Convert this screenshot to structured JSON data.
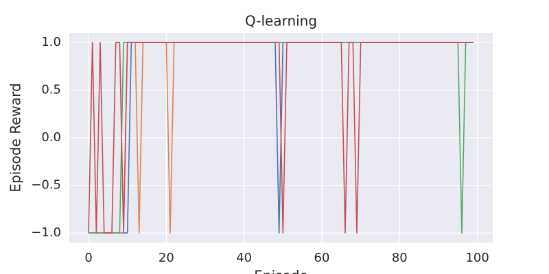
{
  "chart_data": {
    "type": "line",
    "title": "Q-learning",
    "x_label": "Episode",
    "y_label": "Episode Reward",
    "x": [
      0,
      1,
      2,
      3,
      4,
      5,
      6,
      7,
      8,
      9,
      10,
      11,
      12,
      13,
      14,
      15,
      16,
      17,
      18,
      19,
      20,
      21,
      22,
      23,
      24,
      25,
      26,
      27,
      28,
      29,
      30,
      31,
      32,
      33,
      34,
      35,
      36,
      37,
      38,
      39,
      40,
      41,
      42,
      43,
      44,
      45,
      46,
      47,
      48,
      49,
      50,
      51,
      52,
      53,
      54,
      55,
      56,
      57,
      58,
      59,
      60,
      61,
      62,
      63,
      64,
      65,
      66,
      67,
      68,
      69,
      70,
      71,
      72,
      73,
      74,
      75,
      76,
      77,
      78,
      79,
      80,
      81,
      82,
      83,
      84,
      85,
      86,
      87,
      88,
      89,
      90,
      91,
      92,
      93,
      94,
      95,
      96,
      97,
      98,
      99
    ],
    "series": [
      {
        "color": "#4c72b0",
        "values": [
          -1,
          -1,
          -1,
          -1,
          -1,
          -1,
          -1,
          -1,
          -1,
          -1,
          -1,
          1,
          1,
          1,
          1,
          1,
          1,
          1,
          1,
          1,
          1,
          1,
          1,
          1,
          1,
          1,
          1,
          1,
          1,
          1,
          1,
          1,
          1,
          1,
          1,
          1,
          1,
          1,
          1,
          1,
          1,
          1,
          1,
          1,
          1,
          1,
          1,
          1,
          1,
          -1,
          1,
          1,
          1,
          1,
          1,
          1,
          1,
          1,
          1,
          1,
          1,
          1,
          1,
          1,
          1,
          1,
          1,
          1,
          1,
          1,
          1,
          1,
          1,
          1,
          1,
          1,
          1,
          1,
          1,
          1,
          1,
          1,
          1,
          1,
          1,
          1,
          1,
          1,
          1,
          1,
          1,
          1,
          1,
          1,
          1,
          1,
          1,
          1,
          1,
          1
        ]
      },
      {
        "color": "#dd8452",
        "values": [
          -1,
          -1,
          -1,
          -1,
          -1,
          -1,
          -1,
          -1,
          -1,
          -1,
          1,
          1,
          1,
          -1,
          1,
          1,
          1,
          1,
          1,
          1,
          1,
          -1,
          1,
          1,
          1,
          1,
          1,
          1,
          1,
          1,
          1,
          1,
          1,
          1,
          1,
          1,
          1,
          1,
          1,
          1,
          1,
          1,
          1,
          1,
          1,
          1,
          1,
          1,
          1,
          1,
          1,
          1,
          1,
          1,
          1,
          1,
          1,
          1,
          1,
          1,
          1,
          1,
          1,
          1,
          1,
          1,
          1,
          1,
          1,
          1,
          1,
          1,
          1,
          1,
          1,
          1,
          1,
          1,
          1,
          1,
          1,
          1,
          1,
          1,
          1,
          1,
          1,
          1,
          1,
          1,
          1,
          1,
          1,
          1,
          1,
          1,
          1,
          1,
          1,
          1
        ]
      },
      {
        "color": "#55a868",
        "values": [
          -1,
          -1,
          -1,
          -1,
          -1,
          -1,
          -1,
          -1,
          -1,
          1,
          1,
          1,
          1,
          1,
          1,
          1,
          1,
          1,
          1,
          1,
          1,
          1,
          1,
          1,
          1,
          1,
          1,
          1,
          1,
          1,
          1,
          1,
          1,
          1,
          1,
          1,
          1,
          1,
          1,
          1,
          1,
          1,
          1,
          1,
          1,
          1,
          1,
          1,
          1,
          1,
          1,
          1,
          1,
          1,
          1,
          1,
          1,
          1,
          1,
          1,
          1,
          1,
          1,
          1,
          1,
          1,
          1,
          1,
          1,
          1,
          1,
          1,
          1,
          1,
          1,
          1,
          1,
          1,
          1,
          1,
          1,
          1,
          1,
          1,
          1,
          1,
          1,
          1,
          1,
          1,
          1,
          1,
          1,
          1,
          1,
          1,
          -1,
          1,
          1,
          1
        ]
      },
      {
        "color": "#c44e52",
        "values": [
          -1,
          1,
          -1,
          1,
          -1,
          -1,
          -1,
          1,
          1,
          -1,
          1,
          1,
          1,
          1,
          1,
          1,
          1,
          1,
          1,
          1,
          1,
          1,
          1,
          1,
          1,
          1,
          1,
          1,
          1,
          1,
          1,
          1,
          1,
          1,
          1,
          1,
          1,
          1,
          1,
          1,
          1,
          1,
          1,
          1,
          1,
          1,
          1,
          1,
          1,
          1,
          -1,
          1,
          1,
          1,
          1,
          1,
          1,
          1,
          1,
          1,
          1,
          1,
          1,
          1,
          1,
          1,
          -1,
          1,
          1,
          -1,
          1,
          1,
          1,
          1,
          1,
          1,
          1,
          1,
          1,
          1,
          1,
          1,
          1,
          1,
          1,
          1,
          1,
          1,
          1,
          1,
          1,
          1,
          1,
          1,
          1,
          1,
          1,
          1,
          1,
          1
        ]
      }
    ],
    "xlim": [
      -4.95,
      103.95
    ],
    "xticks": [
      0,
      20,
      40,
      60,
      80,
      100
    ],
    "ylim": [
      -1.1,
      1.1
    ],
    "yticks": [
      {
        "value": -1,
        "label": "−1.0"
      },
      {
        "value": -0.5,
        "label": "−0.5"
      },
      {
        "value": 0,
        "label": "0.0"
      },
      0.5,
      {
        "value": 1,
        "label": "1.0"
      }
    ],
    "grid": true
  }
}
